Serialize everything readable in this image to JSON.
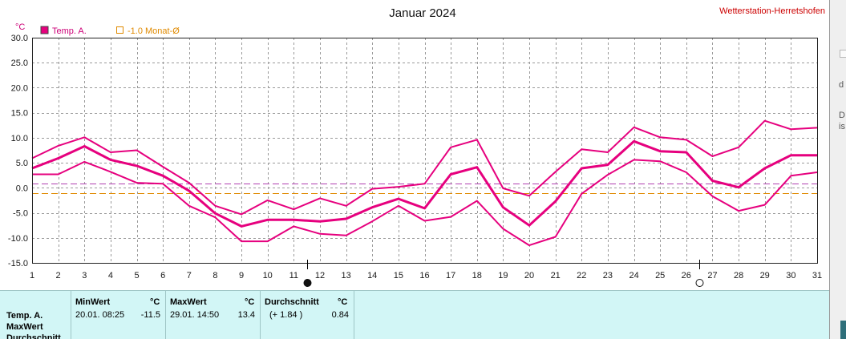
{
  "station": "Wetterstation-Herretshofen",
  "chart_data": {
    "type": "line",
    "title": "Januar 2024",
    "ylabel": "°C",
    "xlabel": "",
    "x": [
      1,
      2,
      3,
      4,
      5,
      6,
      7,
      8,
      9,
      10,
      11,
      12,
      13,
      14,
      15,
      16,
      17,
      18,
      19,
      20,
      21,
      22,
      23,
      24,
      25,
      26,
      27,
      28,
      29,
      30,
      31
    ],
    "ylim": [
      -15,
      30
    ],
    "xlim": [
      1,
      31
    ],
    "yticks": [
      "30.0",
      "25.0",
      "20.0",
      "15.0",
      "10.0",
      "5.0",
      "0.0",
      "-5.0",
      "-10.0",
      "-15.0"
    ],
    "ytick_values": [
      30,
      25,
      20,
      15,
      10,
      5,
      0,
      -5,
      -10,
      -15
    ],
    "xticks": [
      "1",
      "2",
      "3",
      "4",
      "5",
      "6",
      "7",
      "8",
      "9",
      "10",
      "11",
      "12",
      "13",
      "14",
      "15",
      "16",
      "17",
      "18",
      "19",
      "20",
      "21",
      "22",
      "23",
      "24",
      "25",
      "26",
      "27",
      "28",
      "29",
      "30",
      "31"
    ],
    "grid": true,
    "legend": [
      "Temp. A.",
      "-1.0 Monat-Ø"
    ],
    "legend_position": "top-left",
    "series": [
      {
        "name": "Temp. A.",
        "role": "mean",
        "color": "#e6007e",
        "values": [
          3.9,
          5.9,
          8.3,
          5.6,
          4.4,
          2.4,
          -0.6,
          -5.1,
          -7.7,
          -6.4,
          -6.4,
          -6.7,
          -6.2,
          -3.9,
          -2.2,
          -4.1,
          2.7,
          4.1,
          -3.9,
          -7.5,
          -2.7,
          3.9,
          4.6,
          9.3,
          7.3,
          7.1,
          1.4,
          0.1,
          3.9,
          6.5,
          6.5
        ]
      },
      {
        "role": "max",
        "color": "#e6007e",
        "values": [
          5.9,
          8.4,
          10.1,
          7.1,
          7.5,
          4.2,
          1.0,
          -3.6,
          -5.3,
          -2.5,
          -4.3,
          -2.1,
          -3.6,
          -0.2,
          0.2,
          0.8,
          8.1,
          9.6,
          -0.1,
          -1.6,
          3.2,
          7.7,
          7.1,
          12.1,
          10.1,
          9.6,
          6.3,
          8.1,
          13.4,
          11.7,
          12.0
        ]
      },
      {
        "role": "min",
        "color": "#e6007e",
        "values": [
          2.7,
          2.7,
          5.2,
          3.2,
          1.0,
          0.8,
          -3.6,
          -5.9,
          -10.7,
          -10.7,
          -7.7,
          -9.2,
          -9.5,
          -6.7,
          -3.6,
          -6.6,
          -5.8,
          -2.6,
          -8.2,
          -11.5,
          -9.8,
          -1.2,
          2.6,
          5.6,
          5.3,
          3.1,
          -1.7,
          -4.6,
          -3.4,
          2.4,
          3.1
        ]
      }
    ],
    "reference_lines": [
      {
        "name": "-1.0 Monat-Ø",
        "value": -1.0,
        "color": "#e08a00",
        "style": "dashed"
      },
      {
        "value": 0.84,
        "color": "#b040b0",
        "style": "dashed"
      }
    ],
    "moon_markers": [
      {
        "day": 11,
        "phase": "new moon"
      },
      {
        "day": 26,
        "phase": "full moon"
      }
    ]
  },
  "stats": {
    "row_labels": [
      "Temp. A.",
      "MaxWert",
      "Durchschnitt"
    ],
    "min": {
      "header": "MinWert",
      "unit": "°C",
      "datetime": "20.01.  08:25",
      "value": "-11.5"
    },
    "max": {
      "header": "MaxWert",
      "unit": "°C",
      "datetime": "29.01.  14:50",
      "value": "13.4"
    },
    "avg": {
      "header": "Durchschnitt",
      "unit": "°C",
      "delta": "(+ 1.84 )",
      "value": "0.84"
    }
  },
  "side_fragments": [
    "d",
    "D",
    "is"
  ]
}
